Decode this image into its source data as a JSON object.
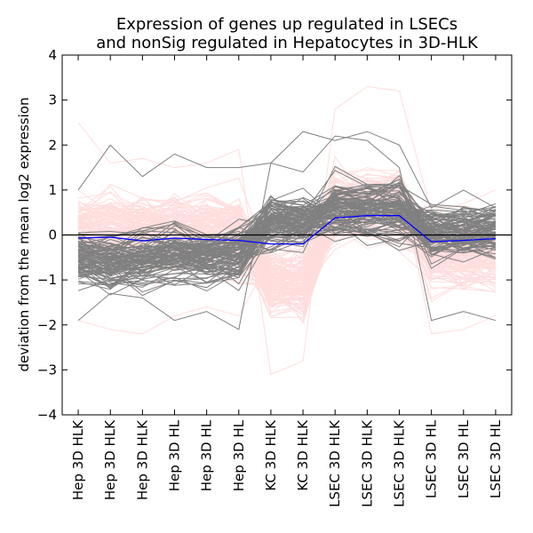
{
  "chart_data": {
    "type": "line",
    "title_lines": [
      "Expression of genes up regulated in LSECs",
      "and nonSig regulated in Hepatocytes in 3D-HLK"
    ],
    "xlabel": "",
    "ylabel": "deviation from the mean log2 expression",
    "ylim": [
      -4,
      4
    ],
    "xlim": [
      0,
      14
    ],
    "yticks": [
      -4,
      -3,
      -2,
      -1,
      0,
      1,
      2,
      3,
      4
    ],
    "categories": [
      "Hep 3D HLK",
      "Hep 3D HLK",
      "Hep 3D HLK",
      "Hep 3D HL",
      "Hep 3D HL",
      "Hep 3D HL",
      "KC 3D HLK",
      "KC 3D HLK",
      "LSEC 3D HLK",
      "LSEC 3D HLK",
      "LSEC 3D HLK",
      "LSEC 3D HL",
      "LSEC 3D HL",
      "LSEC 3D HL"
    ],
    "grid": false,
    "series": [
      {
        "group": "nonsig-hepatocyte-genes",
        "color": "#ffdddd",
        "n_lines": 140,
        "group_center": [
          0.05,
          0.05,
          0.05,
          0.05,
          0.05,
          0.05,
          -1.0,
          -1.0,
          0.7,
          0.7,
          0.7,
          -0.35,
          -0.35,
          -0.35
        ],
        "group_spread": 0.45,
        "noise_spread": 0.35,
        "examples": [
          [
            2.5,
            1.6,
            1.7,
            1.5,
            1.6,
            1.9,
            -3.1,
            -2.8,
            2.8,
            3.3,
            3.2,
            0.5,
            0.7,
            1.0
          ],
          [
            -1.9,
            -2.1,
            -2.2,
            -1.8,
            -1.6,
            -1.8,
            -0.5,
            -0.6,
            1.2,
            1.5,
            1.3,
            -2.2,
            -2.1,
            -1.8
          ]
        ]
      },
      {
        "group": "up-regulated-lsec-genes",
        "color": "#808080",
        "n_lines": 100,
        "group_center": [
          -0.5,
          -0.6,
          -0.55,
          -0.45,
          -0.5,
          -0.45,
          0.3,
          0.25,
          0.6,
          0.6,
          0.6,
          0.05,
          0.05,
          0.1
        ],
        "group_spread": 0.35,
        "noise_spread": 0.25,
        "examples": [
          [
            1.0,
            2.0,
            1.3,
            1.8,
            1.5,
            1.5,
            1.6,
            2.3,
            2.1,
            2.3,
            2.0,
            0.6,
            1.0,
            0.6
          ],
          [
            -1.9,
            -1.3,
            -1.4,
            -1.9,
            -1.7,
            -2.1,
            1.6,
            1.4,
            2.2,
            2.1,
            1.5,
            -1.9,
            -1.7,
            -1.9
          ]
        ]
      },
      {
        "group": "mean",
        "color": "#0000ff",
        "values": [
          -0.07,
          -0.05,
          -0.13,
          -0.07,
          -0.1,
          -0.12,
          -0.2,
          -0.2,
          0.38,
          0.43,
          0.43,
          -0.15,
          -0.12,
          -0.08
        ]
      }
    ],
    "zero_line": {
      "y": 0,
      "color": "#000000"
    }
  }
}
